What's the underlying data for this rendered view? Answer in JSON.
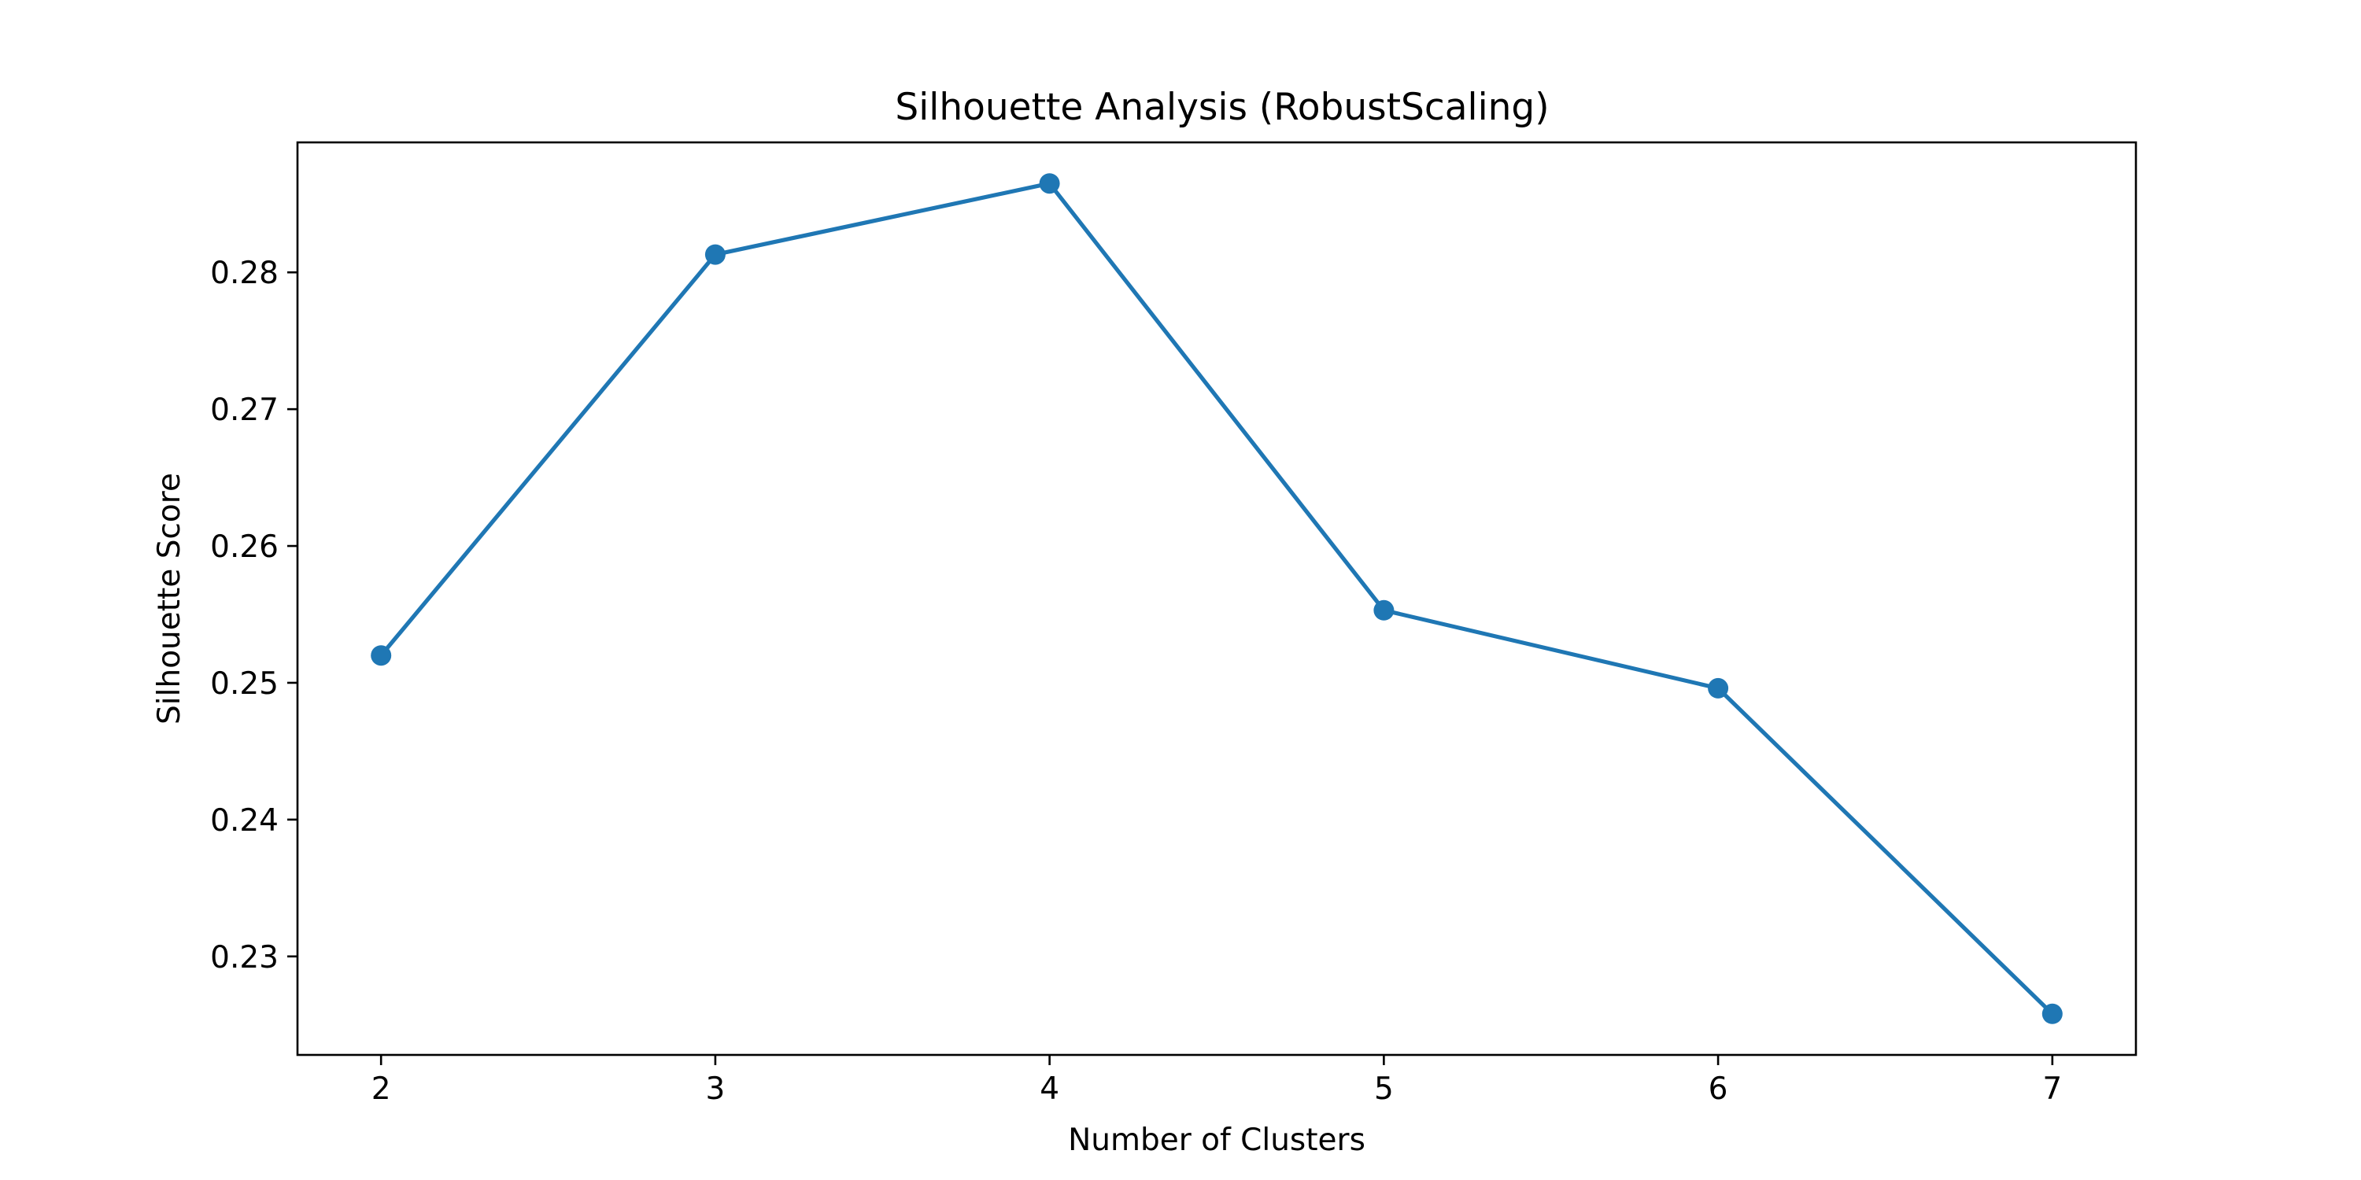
{
  "chart_data": {
    "type": "line",
    "title": "Silhouette Analysis (RobustScaling)",
    "xlabel": "Number of Clusters",
    "ylabel": "Silhouette Score",
    "x": [
      2,
      3,
      4,
      5,
      6,
      7
    ],
    "series": [
      {
        "values": [
          0.252,
          0.2813,
          0.2865,
          0.2553,
          0.2496,
          0.2258
        ]
      }
    ],
    "xlim": [
      1.75,
      7.25
    ],
    "ylim": [
      0.2228,
      0.2895
    ],
    "xticks": [
      2,
      3,
      4,
      5,
      6,
      7
    ],
    "yticks": [
      0.23,
      0.24,
      0.25,
      0.26,
      0.27,
      0.28
    ],
    "ytick_labels": [
      "0.23",
      "0.24",
      "0.25",
      "0.26",
      "0.27",
      "0.28"
    ],
    "marker": "circle",
    "grid": false,
    "legend": "none",
    "colors": {
      "line": "#1f77b4",
      "axes": "#000000"
    }
  }
}
